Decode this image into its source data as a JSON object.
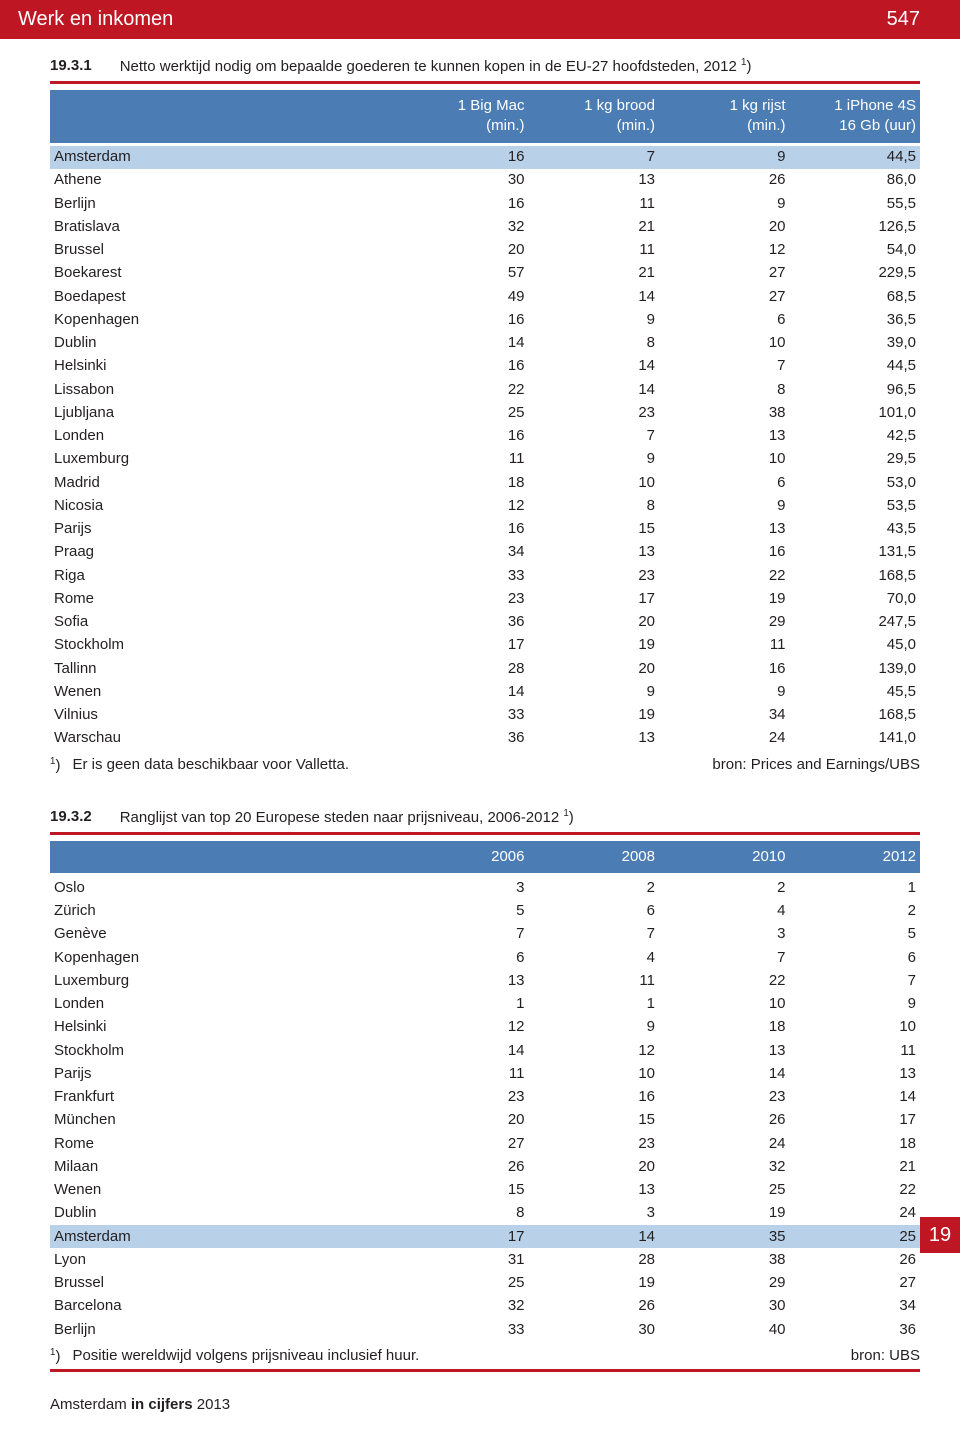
{
  "colors": {
    "brand_red": "#be1622",
    "table_header_blue": "#4b7cb3",
    "highlight_blue": "#b8d0e8",
    "text": "#231f20",
    "white": "#ffffff"
  },
  "header": {
    "section_title": "Werk en inkomen",
    "page_number": "547"
  },
  "table1": {
    "caption_number": "19.3.1",
    "caption_text": "Netto werktijd nodig om bepaalde goederen te kunnen kopen in de EU-27 hoofdsteden, 2012 ",
    "caption_marker": "1",
    "caption_suffix": ")",
    "columns": [
      {
        "l1": "1 Big Mac",
        "l2": "(min.)"
      },
      {
        "l1": "1 kg brood",
        "l2": "(min.)"
      },
      {
        "l1": "1 kg rijst",
        "l2": "(min.)"
      },
      {
        "l1": "1 iPhone 4S",
        "l2": "16 Gb (uur)"
      }
    ],
    "highlight_row_index": 0,
    "rows": [
      [
        "Amsterdam",
        "16",
        "7",
        "9",
        "44,5"
      ],
      [
        "Athene",
        "30",
        "13",
        "26",
        "86,0"
      ],
      [
        "Berlijn",
        "16",
        "11",
        "9",
        "55,5"
      ],
      [
        "Bratislava",
        "32",
        "21",
        "20",
        "126,5"
      ],
      [
        "Brussel",
        "20",
        "11",
        "12",
        "54,0"
      ],
      [
        "Boekarest",
        "57",
        "21",
        "27",
        "229,5"
      ],
      [
        "Boedapest",
        "49",
        "14",
        "27",
        "68,5"
      ],
      [
        "Kopenhagen",
        "16",
        "9",
        "6",
        "36,5"
      ],
      [
        "Dublin",
        "14",
        "8",
        "10",
        "39,0"
      ],
      [
        "Helsinki",
        "16",
        "14",
        "7",
        "44,5"
      ],
      [
        "Lissabon",
        "22",
        "14",
        "8",
        "96,5"
      ],
      [
        "Ljubljana",
        "25",
        "23",
        "38",
        "101,0"
      ],
      [
        "Londen",
        "16",
        "7",
        "13",
        "42,5"
      ],
      [
        "Luxemburg",
        "11",
        "9",
        "10",
        "29,5"
      ],
      [
        "Madrid",
        "18",
        "10",
        "6",
        "53,0"
      ],
      [
        "Nicosia",
        "12",
        "8",
        "9",
        "53,5"
      ],
      [
        "Parijs",
        "16",
        "15",
        "13",
        "43,5"
      ],
      [
        "Praag",
        "34",
        "13",
        "16",
        "131,5"
      ],
      [
        "Riga",
        "33",
        "23",
        "22",
        "168,5"
      ],
      [
        "Rome",
        "23",
        "17",
        "19",
        "70,0"
      ],
      [
        "Sofia",
        "36",
        "20",
        "29",
        "247,5"
      ],
      [
        "Stockholm",
        "17",
        "19",
        "11",
        "45,0"
      ],
      [
        "Tallinn",
        "28",
        "20",
        "16",
        "139,0"
      ],
      [
        "Wenen",
        "14",
        "9",
        "9",
        "45,5"
      ],
      [
        "Vilnius",
        "33",
        "19",
        "34",
        "168,5"
      ],
      [
        "Warschau",
        "36",
        "13",
        "24",
        "141,0"
      ]
    ],
    "footnote_marker": "1",
    "footnote_paren": ")",
    "footnote_text": "Er is geen data beschikbaar voor Valletta.",
    "source": "bron: Prices and Earnings/UBS"
  },
  "table2": {
    "caption_number": "19.3.2",
    "caption_text": "Ranglijst van top 20 Europese steden naar prijsniveau, 2006-2012 ",
    "caption_marker": "1",
    "caption_suffix": ")",
    "columns": [
      "2006",
      "2008",
      "2010",
      "2012"
    ],
    "highlight_row_index": 15,
    "rows": [
      [
        "Oslo",
        "3",
        "2",
        "2",
        "1"
      ],
      [
        "Zürich",
        "5",
        "6",
        "4",
        "2"
      ],
      [
        "Genève",
        "7",
        "7",
        "3",
        "5"
      ],
      [
        "Kopenhagen",
        "6",
        "4",
        "7",
        "6"
      ],
      [
        "Luxemburg",
        "13",
        "11",
        "22",
        "7"
      ],
      [
        "Londen",
        "1",
        "1",
        "10",
        "9"
      ],
      [
        "Helsinki",
        "12",
        "9",
        "18",
        "10"
      ],
      [
        "Stockholm",
        "14",
        "12",
        "13",
        "11"
      ],
      [
        "Parijs",
        "11",
        "10",
        "14",
        "13"
      ],
      [
        "Frankfurt",
        "23",
        "16",
        "23",
        "14"
      ],
      [
        "München",
        "20",
        "15",
        "26",
        "17"
      ],
      [
        "Rome",
        "27",
        "23",
        "24",
        "18"
      ],
      [
        "Milaan",
        "26",
        "20",
        "32",
        "21"
      ],
      [
        "Wenen",
        "15",
        "13",
        "25",
        "22"
      ],
      [
        "Dublin",
        "8",
        "3",
        "19",
        "24"
      ],
      [
        "Amsterdam",
        "17",
        "14",
        "35",
        "25"
      ],
      [
        "Lyon",
        "31",
        "28",
        "38",
        "26"
      ],
      [
        "Brussel",
        "25",
        "19",
        "29",
        "27"
      ],
      [
        "Barcelona",
        "32",
        "26",
        "30",
        "34"
      ],
      [
        "Berlijn",
        "33",
        "30",
        "40",
        "36"
      ]
    ],
    "footnote_marker": "1",
    "footnote_paren": ")",
    "footnote_text": "Positie wereldwijd volgens prijsniveau inclusief huur.",
    "source": "bron: UBS"
  },
  "side_tab": "19",
  "publication": {
    "prefix": "Amsterdam ",
    "bold": "in cijfers",
    "suffix": " 2013"
  }
}
